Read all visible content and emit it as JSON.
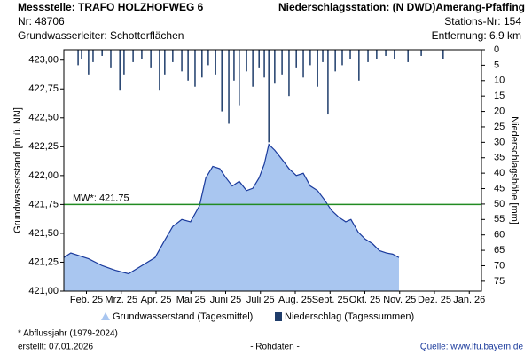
{
  "header": {
    "station": "Messstelle: TRAFO HOLZHOFWEG 6",
    "number": "Nr: 48706",
    "aquifer": "Grundwasserleiter:  Schotterflächen",
    "rain_station": "Niederschlagsstation: (N DWD)Amerang-Pfaffing",
    "rain_number": "Stations-Nr: 154",
    "distance": "Entfernung: 6.9 km"
  },
  "footer": {
    "note": "* Abflussjahr (1979-2024)",
    "created": "erstellt:  07.01.2026",
    "raw": "- Rohdaten -",
    "source": "Quelle: www.lfu.bayern.de"
  },
  "chart_data": {
    "type": "combo",
    "ylabel": "Grundwasserstand [m ü. NN]",
    "y2label": "Niederschlagshöhe [mm]",
    "xlim": [
      0,
      12
    ],
    "xticks": [
      {
        "value": 0.65,
        "label": "Feb. 25"
      },
      {
        "value": 1.65,
        "label": "Mrz. 25"
      },
      {
        "value": 2.65,
        "label": "Apr. 25"
      },
      {
        "value": 3.65,
        "label": "Mai 25"
      },
      {
        "value": 4.65,
        "label": "Juni 25"
      },
      {
        "value": 5.65,
        "label": "Juli 25"
      },
      {
        "value": 6.65,
        "label": "Aug. 25"
      },
      {
        "value": 7.65,
        "label": "Sept. 25"
      },
      {
        "value": 8.65,
        "label": "Okt. 25"
      },
      {
        "value": 9.65,
        "label": "Nov. 25"
      },
      {
        "value": 10.65,
        "label": "Dez. 25"
      },
      {
        "value": 11.65,
        "label": "Jan. 26"
      }
    ],
    "ylim": [
      421,
      423.09
    ],
    "yticks": [
      {
        "value": 421,
        "label": "421,00"
      },
      {
        "value": 421.25,
        "label": "421,25"
      },
      {
        "value": 421.5,
        "label": "421,50"
      },
      {
        "value": 421.75,
        "label": "421,75"
      },
      {
        "value": 422,
        "label": "422,00"
      },
      {
        "value": 422.25,
        "label": "422,25"
      },
      {
        "value": 422.5,
        "label": "422,50"
      },
      {
        "value": 422.75,
        "label": "422,75"
      },
      {
        "value": 423,
        "label": "423,00"
      }
    ],
    "y2lim": [
      0,
      78.2
    ],
    "y2_inverted": true,
    "y2ticks": [
      0,
      5,
      10,
      15,
      20,
      25,
      30,
      35,
      40,
      45,
      50,
      55,
      60,
      65,
      70,
      75
    ],
    "mean": {
      "value": 421.75,
      "label": "MW*: 421.75",
      "color": "#228b22"
    },
    "series": [
      {
        "name": "Grundwasserstand (Tagesmittel)",
        "type": "area",
        "color": "#a9c6f0",
        "line_color": "#1a3a9c",
        "x": [
          0,
          0.2,
          0.71,
          1.1,
          1.48,
          1.86,
          2.24,
          2.62,
          2.88,
          3.13,
          3.39,
          3.64,
          3.9,
          4.08,
          4.28,
          4.48,
          4.66,
          4.84,
          5.04,
          5.25,
          5.43,
          5.61,
          5.76,
          5.89,
          6.06,
          6.27,
          6.47,
          6.68,
          6.88,
          7.08,
          7.29,
          7.49,
          7.69,
          7.9,
          8.1,
          8.25,
          8.46,
          8.66,
          8.87,
          9.07,
          9.27,
          9.45,
          9.63
        ],
        "values": [
          421.29,
          421.33,
          421.28,
          421.22,
          421.18,
          421.15,
          421.22,
          421.29,
          421.43,
          421.56,
          421.62,
          421.6,
          421.74,
          421.98,
          422.08,
          422.06,
          421.98,
          421.91,
          421.95,
          421.87,
          421.89,
          421.98,
          422.1,
          422.27,
          422.22,
          422.14,
          422.06,
          422.0,
          422.02,
          421.91,
          421.87,
          421.79,
          421.7,
          421.64,
          421.6,
          421.62,
          421.51,
          421.45,
          421.41,
          421.35,
          421.33,
          421.32,
          421.29
        ]
      },
      {
        "name": "Niederschlag (Tagessummen)",
        "type": "bar",
        "axis": "y2",
        "color": "#1f3d6b",
        "x": [
          0.41,
          0.51,
          0.71,
          0.84,
          1.1,
          1.35,
          1.61,
          1.73,
          1.99,
          2.24,
          2.5,
          2.75,
          2.9,
          3.13,
          3.39,
          3.57,
          3.77,
          3.97,
          4.15,
          4.36,
          4.54,
          4.74,
          4.89,
          5.04,
          5.25,
          5.43,
          5.61,
          5.76,
          5.89,
          6.06,
          6.27,
          6.47,
          6.68,
          6.88,
          7.08,
          7.29,
          7.44,
          7.59,
          7.8,
          8.0,
          8.23,
          8.48,
          8.74,
          8.99,
          9.25,
          9.5,
          9.89,
          10.27,
          10.9
        ],
        "values": [
          5,
          3,
          8,
          4,
          2,
          6,
          13,
          8,
          4,
          3,
          6,
          13,
          8,
          4,
          7,
          10,
          12,
          9,
          5,
          8,
          20,
          24,
          10,
          18,
          7,
          12,
          6,
          9,
          30,
          11,
          8,
          15,
          6,
          9,
          5,
          12,
          4,
          21,
          7,
          5,
          3,
          10,
          4,
          3,
          2,
          3,
          4,
          2,
          3
        ]
      }
    ]
  }
}
